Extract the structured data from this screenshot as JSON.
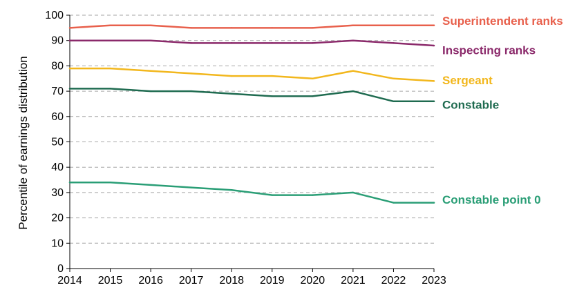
{
  "chart_data": {
    "type": "line",
    "title": "",
    "xlabel": "",
    "ylabel": "Percentile of earnings distribution",
    "x": [
      "2014",
      "2015",
      "2016",
      "2017",
      "2018",
      "2019",
      "2020",
      "2021",
      "2022",
      "2023"
    ],
    "yticks": [
      "0",
      "10",
      "20",
      "30",
      "40",
      "50",
      "60",
      "70",
      "80",
      "90",
      "100"
    ],
    "ylim": [
      0,
      100
    ],
    "grid": true,
    "legend": "direct labels at right end of lines",
    "series": [
      {
        "name": "Superintendent ranks",
        "color": "#e8604c",
        "values": [
          95,
          96,
          96,
          95,
          95,
          95,
          95,
          96,
          96,
          96
        ]
      },
      {
        "name": "Inspecting ranks",
        "color": "#8b2a6b",
        "values": [
          90,
          90,
          90,
          89,
          89,
          89,
          89,
          90,
          89,
          88
        ]
      },
      {
        "name": "Sergeant",
        "color": "#f2b71d",
        "values": [
          79,
          79,
          78,
          77,
          76,
          76,
          75,
          78,
          75,
          74
        ]
      },
      {
        "name": "Constable",
        "color": "#1f6b50",
        "values": [
          71,
          71,
          70,
          70,
          69,
          68,
          68,
          70,
          66,
          66
        ]
      },
      {
        "name": "Constable point 0",
        "color": "#2a9e76",
        "values": [
          34,
          34,
          33,
          32,
          31,
          29,
          29,
          30,
          26,
          26
        ]
      }
    ]
  }
}
